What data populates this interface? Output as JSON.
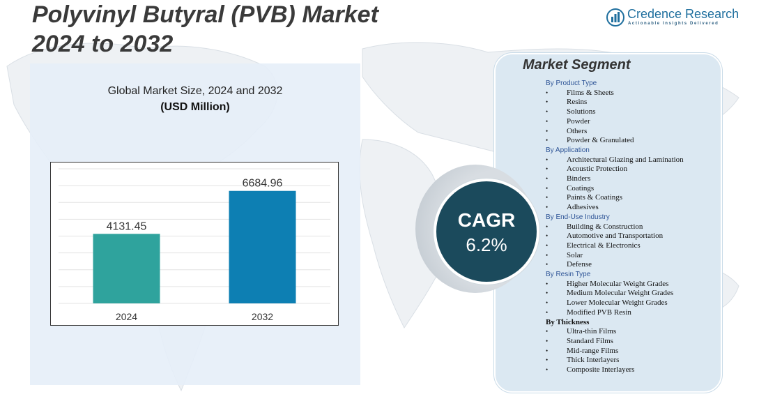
{
  "header": {
    "title_line1": "Polyvinyl Butyral (PVB) Market",
    "title_line2": "2024 to 2032"
  },
  "brand": {
    "name": "Credence Research",
    "tagline": "Actionable Insights Delivered"
  },
  "chart_data": {
    "type": "bar",
    "title": "Global Market Size,  2024 and 2032",
    "subtitle": "(USD Million)",
    "categories": [
      "2024",
      "2032"
    ],
    "values": [
      4131.45,
      6684.96
    ],
    "value_labels": [
      "4131.45",
      "6684.96"
    ],
    "colors": [
      "#2fa39d",
      "#0d7fb3"
    ],
    "ylim": [
      0,
      8000
    ],
    "grid": true,
    "legend": "none"
  },
  "cagr": {
    "label": "CAGR",
    "value": "6.2%"
  },
  "segments": {
    "title": "Market Segment",
    "groups": [
      {
        "heading": "By Product Type",
        "items": [
          "Films & Sheets",
          "Resins",
          "Solutions",
          "Powder",
          "Others",
          "Powder & Granulated"
        ]
      },
      {
        "heading": "By Application",
        "items": [
          "Architectural Glazing  and Lamination",
          "Acoustic Protection",
          "Binders",
          "Coatings",
          "Paints & Coatings",
          "Adhesives"
        ]
      },
      {
        "heading": "By End-Use Industry",
        "items": [
          "Building & Construction",
          "Automotive and Transportation",
          "Electrical  & Electronics",
          "Solar",
          "Defense"
        ]
      },
      {
        "heading": "By Resin Type",
        "items": [
          "Higher Molecular  Weight Grades",
          "Medium Molecular  Weight Grades",
          "Lower Molecular  Weight Grades",
          "Modified PVB  Resin"
        ]
      },
      {
        "heading": "By Thickness",
        "items": [
          "Ultra-thin Films",
          "Standard Films",
          "Mid-range Films",
          "Thick Interlayers",
          "Composite Interlayers"
        ]
      }
    ]
  }
}
